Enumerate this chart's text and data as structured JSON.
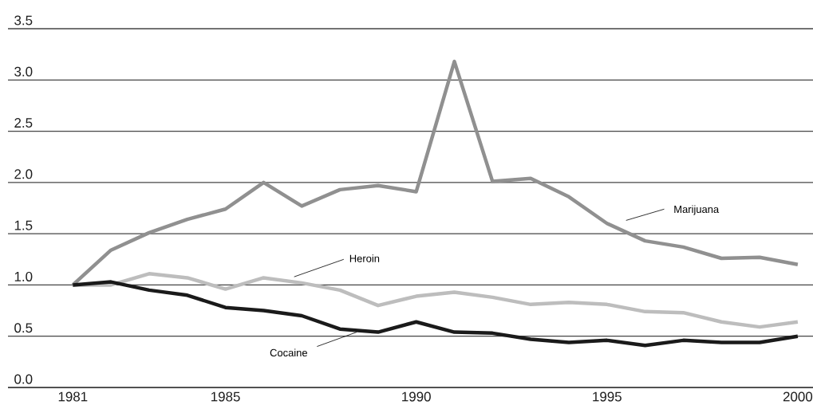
{
  "chart_data": {
    "type": "line",
    "x": [
      1981,
      1982,
      1983,
      1984,
      1985,
      1986,
      1987,
      1988,
      1989,
      1990,
      1991,
      1992,
      1993,
      1994,
      1995,
      1996,
      1997,
      1998,
      1999,
      2000
    ],
    "series": [
      {
        "name": "Marijuana",
        "color": "#909090",
        "values": [
          1.0,
          1.34,
          1.51,
          1.64,
          1.74,
          2.0,
          1.77,
          1.93,
          1.97,
          1.91,
          3.18,
          2.01,
          2.04,
          1.86,
          1.6,
          1.43,
          1.37,
          1.26,
          1.27,
          1.2
        ]
      },
      {
        "name": "Heroin",
        "color": "#bdbdbd",
        "values": [
          1.0,
          1.0,
          1.11,
          1.07,
          0.96,
          1.07,
          1.02,
          0.95,
          0.8,
          0.89,
          0.93,
          0.88,
          0.81,
          0.83,
          0.81,
          0.74,
          0.73,
          0.64,
          0.59,
          0.64
        ]
      },
      {
        "name": "Cocaine",
        "color": "#1a1a1a",
        "values": [
          1.0,
          1.03,
          0.95,
          0.9,
          0.78,
          0.75,
          0.7,
          0.57,
          0.54,
          0.64,
          0.54,
          0.53,
          0.47,
          0.44,
          0.46,
          0.41,
          0.46,
          0.44,
          0.44,
          0.5
        ]
      }
    ],
    "xlim": [
      1979.3,
      2000.4
    ],
    "ylim": [
      0,
      3.5
    ],
    "xticks": [
      1981,
      1985,
      1990,
      1995,
      2000
    ],
    "yticks": [
      {
        "value": 0,
        "label": "0.0"
      },
      {
        "value": 0.5,
        "label": "0.5"
      },
      {
        "value": 1,
        "label": "1.0"
      },
      {
        "value": 1.5,
        "label": "1.5"
      },
      {
        "value": 2,
        "label": "2.0"
      },
      {
        "value": 2.5,
        "label": "2.5"
      },
      {
        "value": 3,
        "label": "3.0"
      },
      {
        "value": 3.5,
        "label": "3.5"
      }
    ],
    "grid": "y"
  }
}
